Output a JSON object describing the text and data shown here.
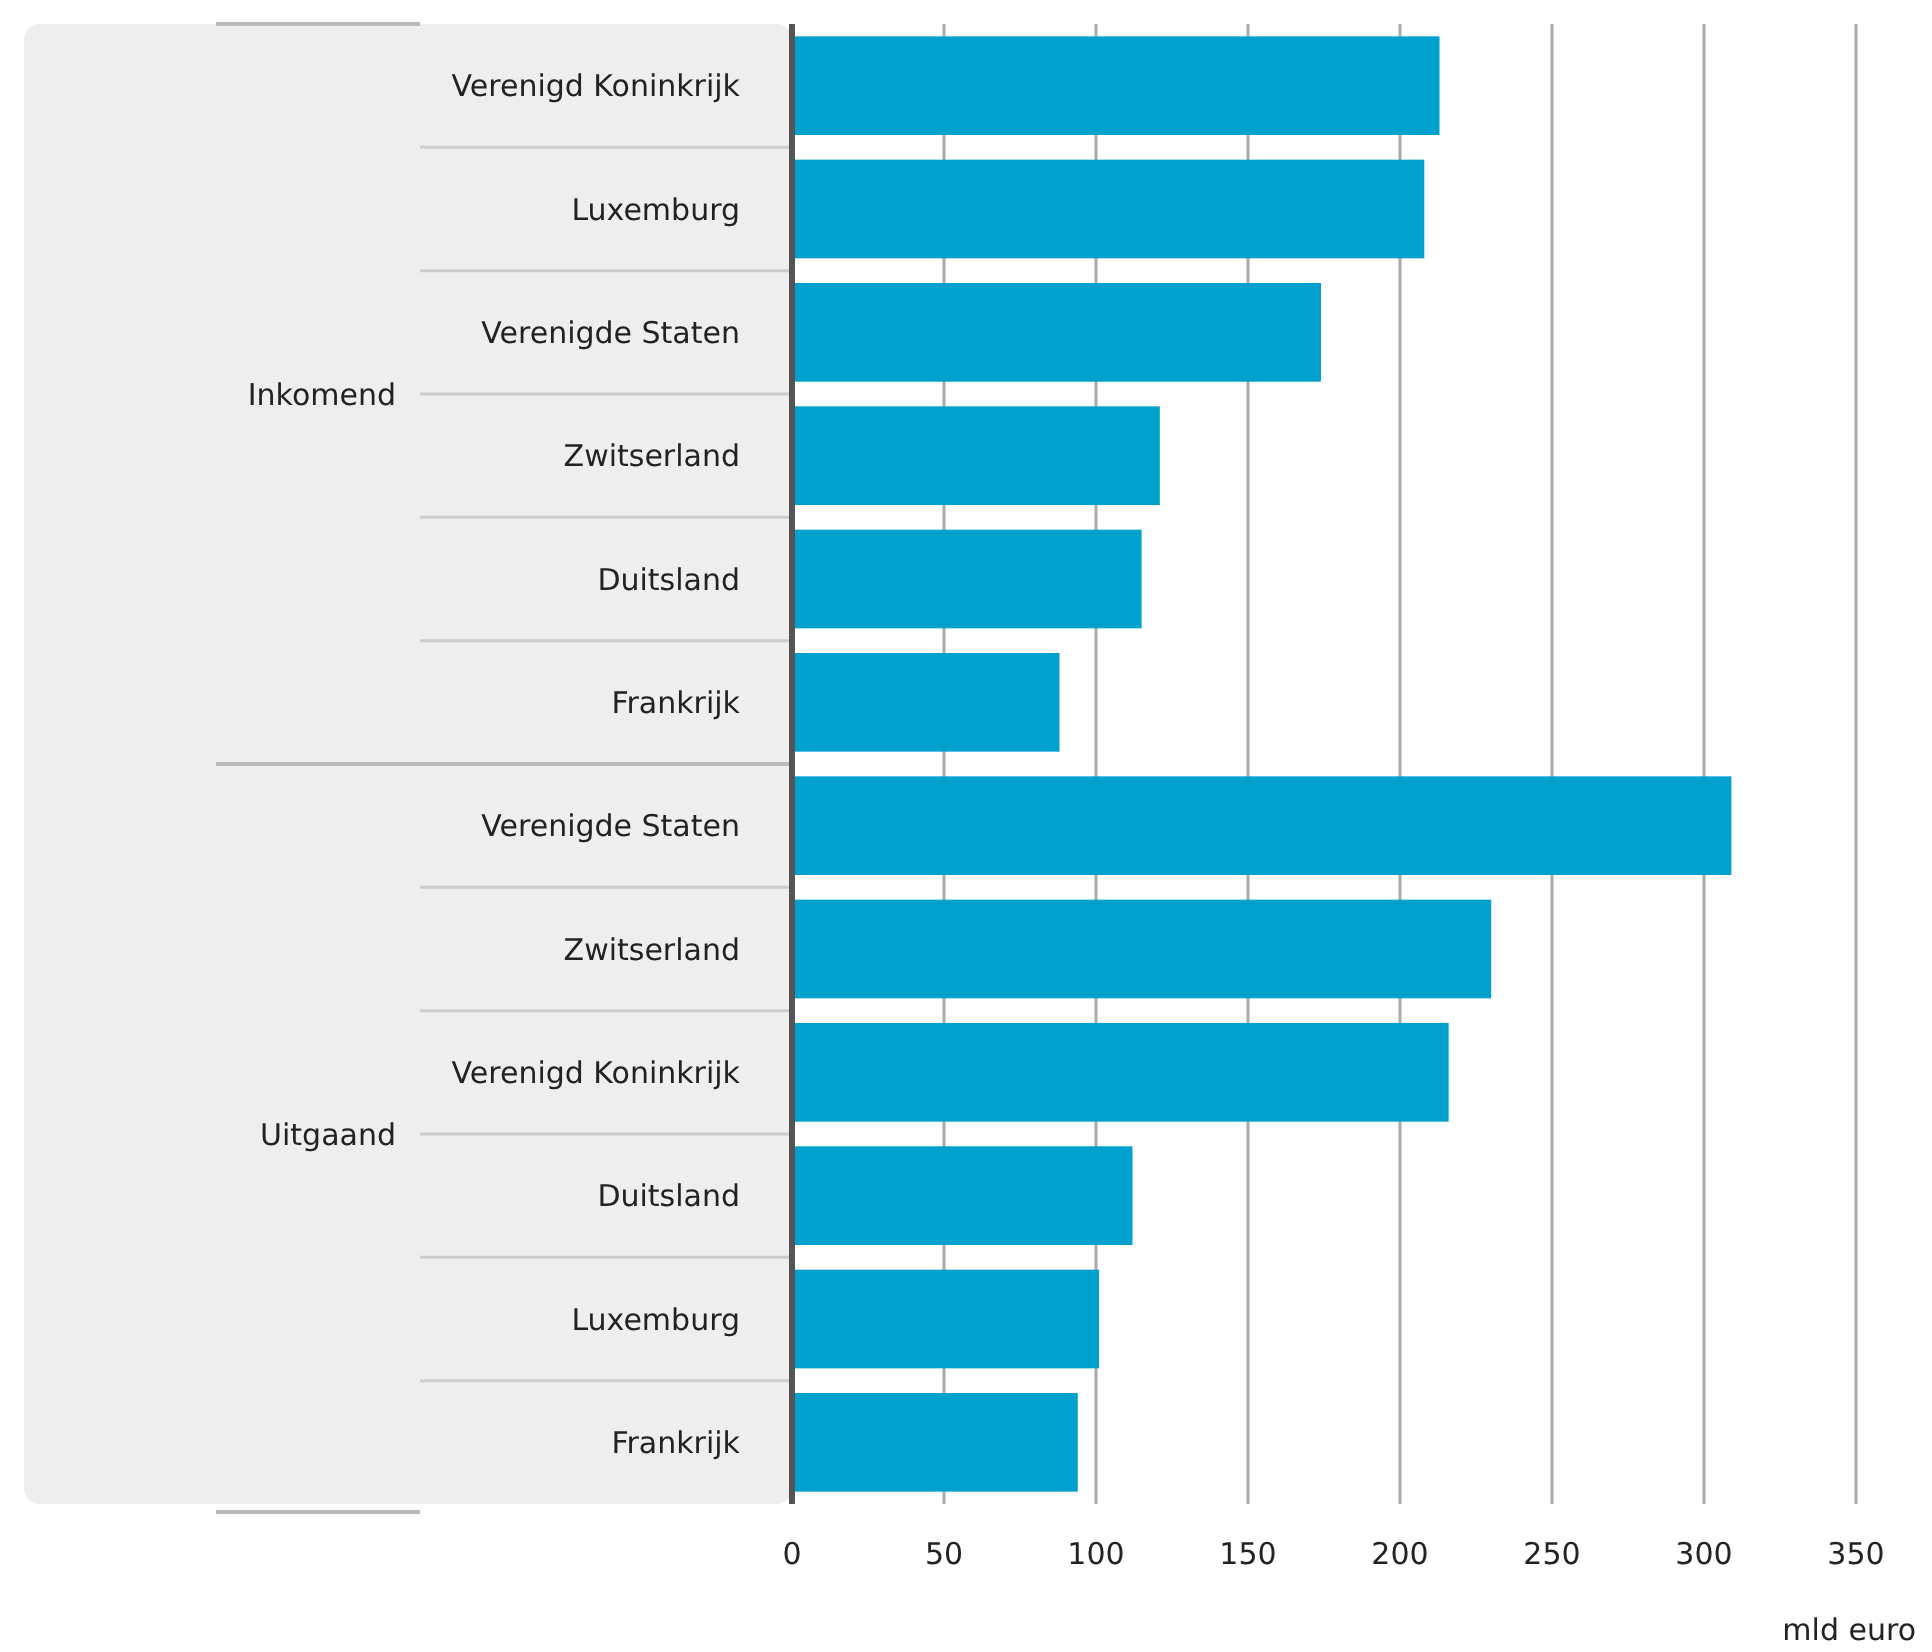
{
  "chart_data": {
    "type": "bar",
    "orientation": "horizontal",
    "xlabel": "mld euro",
    "categories": [
      "Verenigd Koninkrijk",
      "Luxemburg",
      "Verenigde Staten",
      "Zwitserland",
      "Duitsland",
      "Frankrijk",
      "Verenigde Staten",
      "Zwitserland",
      "Verenigd Koninkrijk",
      "Duitsland",
      "Luxemburg",
      "Frankrijk"
    ],
    "values": [
      213,
      208,
      174,
      121,
      115,
      88,
      309,
      230,
      216,
      112,
      101,
      94
    ],
    "color": "#00a1cd",
    "xlim": [
      0,
      350
    ],
    "xticks": [
      0,
      50,
      100,
      150,
      200,
      250,
      300,
      350
    ],
    "grid": "x",
    "annotations": [
      "Inkomend",
      "Uitgaand"
    ]
  }
}
